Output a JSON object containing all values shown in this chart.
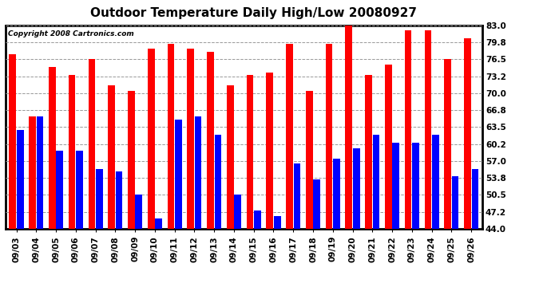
{
  "title": "Outdoor Temperature Daily High/Low 20080927",
  "copyright": "Copyright 2008 Cartronics.com",
  "dates": [
    "09/03",
    "09/04",
    "09/05",
    "09/06",
    "09/07",
    "09/08",
    "09/09",
    "09/10",
    "09/11",
    "09/12",
    "09/13",
    "09/14",
    "09/15",
    "09/16",
    "09/17",
    "09/18",
    "09/19",
    "09/20",
    "09/21",
    "09/22",
    "09/23",
    "09/24",
    "09/25",
    "09/26"
  ],
  "highs": [
    77.5,
    65.5,
    75.0,
    73.5,
    76.5,
    71.5,
    70.5,
    78.5,
    79.5,
    78.5,
    78.0,
    71.5,
    73.5,
    74.0,
    79.5,
    70.5,
    79.5,
    83.5,
    73.5,
    75.5,
    82.0,
    82.0,
    76.5,
    80.5
  ],
  "lows": [
    63.0,
    65.5,
    59.0,
    59.0,
    55.5,
    55.0,
    50.5,
    46.0,
    65.0,
    65.5,
    62.0,
    50.5,
    47.5,
    46.5,
    56.5,
    53.5,
    57.5,
    59.5,
    62.0,
    60.5,
    60.5,
    62.0,
    54.0,
    55.5
  ],
  "high_color": "#FF0000",
  "low_color": "#0000FF",
  "bg_color": "#FFFFFF",
  "plot_bg_color": "#FFFFFF",
  "grid_color": "#999999",
  "ymin": 44.0,
  "ymax": 83.0,
  "yticks": [
    44.0,
    47.2,
    50.5,
    53.8,
    57.0,
    60.2,
    63.5,
    66.8,
    70.0,
    73.2,
    76.5,
    79.8,
    83.0
  ],
  "title_fontsize": 11,
  "copyright_fontsize": 6.5,
  "tick_fontsize": 7.5,
  "bar_width": 0.35,
  "bar_gap": 0.03
}
